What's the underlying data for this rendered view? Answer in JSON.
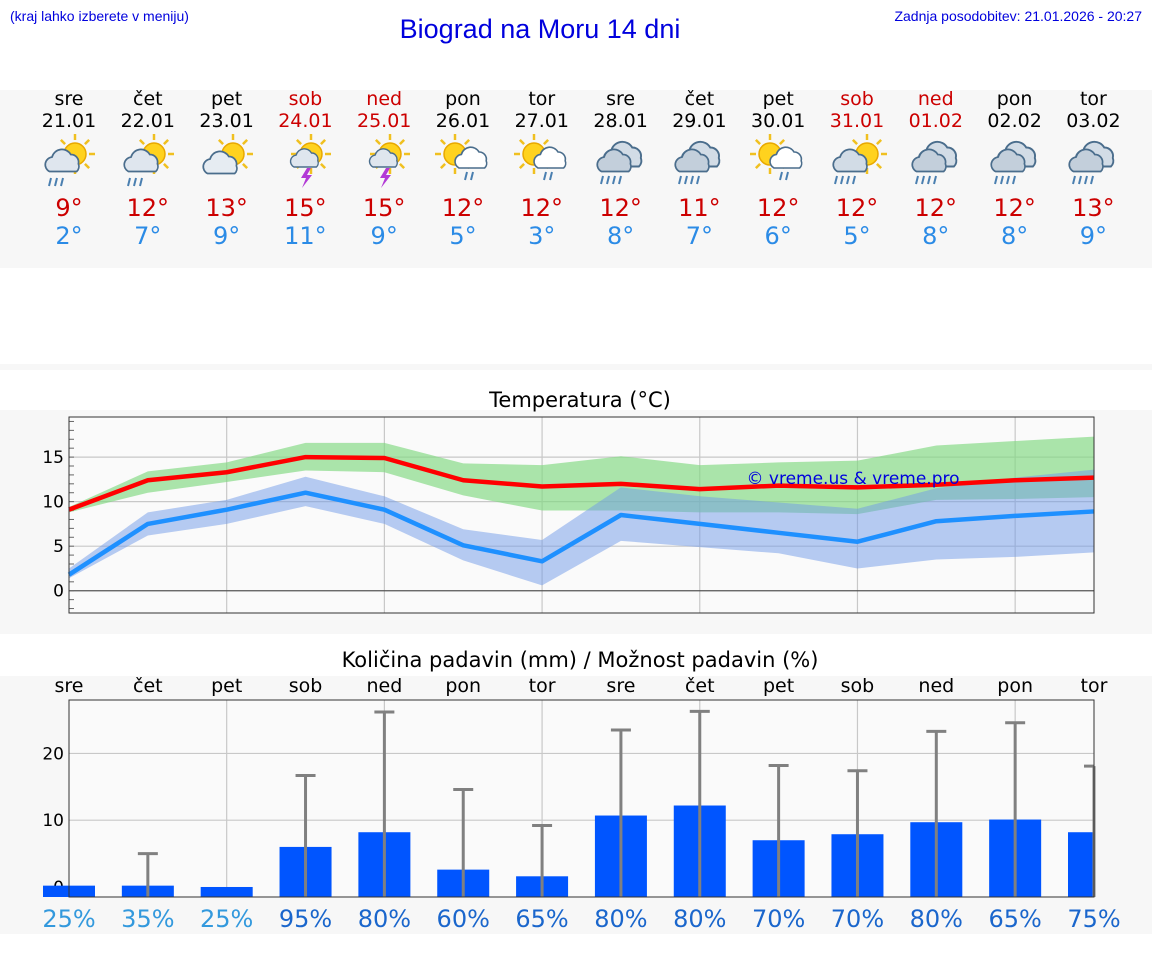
{
  "header": {
    "hint": "(kraj lahko izberete v meniju)",
    "title": "Biograd na Moru 14 dni",
    "updated": "Zadnja posodobitev: 21.01.2026 - 20:27"
  },
  "colors": {
    "weekend": "#cc0000",
    "tmax": "#cc0000",
    "tmin": "#2b8be6",
    "bars": "#0055ff",
    "max_line": "#ff0000",
    "min_line": "#1e90ff"
  },
  "days": [
    {
      "name": "sre",
      "date": "21.01",
      "weekend": false,
      "icon": "sun-cloud-rain-icon",
      "tmax": "9°",
      "tmin": "2°"
    },
    {
      "name": "čet",
      "date": "22.01",
      "weekend": false,
      "icon": "sun-cloud-rain-icon",
      "tmax": "12°",
      "tmin": "7°"
    },
    {
      "name": "pet",
      "date": "23.01",
      "weekend": false,
      "icon": "sun-cloud-icon",
      "tmax": "13°",
      "tmin": "9°"
    },
    {
      "name": "sob",
      "date": "24.01",
      "weekend": true,
      "icon": "sun-thunderstorm-icon",
      "tmax": "15°",
      "tmin": "11°"
    },
    {
      "name": "ned",
      "date": "25.01",
      "weekend": true,
      "icon": "sun-thunderstorm-icon",
      "tmax": "15°",
      "tmin": "9°"
    },
    {
      "name": "pon",
      "date": "26.01",
      "weekend": false,
      "icon": "sun-cloud-light-rain-icon",
      "tmax": "12°",
      "tmin": "5°"
    },
    {
      "name": "tor",
      "date": "27.01",
      "weekend": false,
      "icon": "sun-cloud-light-rain-icon",
      "tmax": "12°",
      "tmin": "3°"
    },
    {
      "name": "sre",
      "date": "28.01",
      "weekend": false,
      "icon": "cloud-heavy-rain-icon",
      "tmax": "12°",
      "tmin": "8°"
    },
    {
      "name": "čet",
      "date": "29.01",
      "weekend": false,
      "icon": "cloud-heavy-rain-icon",
      "tmax": "11°",
      "tmin": "7°"
    },
    {
      "name": "pet",
      "date": "30.01",
      "weekend": false,
      "icon": "sun-cloud-light-rain-icon",
      "tmax": "12°",
      "tmin": "6°"
    },
    {
      "name": "sob",
      "date": "31.01",
      "weekend": true,
      "icon": "sun-cloud-heavy-rain-icon",
      "tmax": "12°",
      "tmin": "5°"
    },
    {
      "name": "ned",
      "date": "01.02",
      "weekend": true,
      "icon": "cloud-heavy-rain-icon",
      "tmax": "12°",
      "tmin": "8°"
    },
    {
      "name": "pon",
      "date": "02.02",
      "weekend": false,
      "icon": "cloud-heavy-rain-icon",
      "tmax": "12°",
      "tmin": "8°"
    },
    {
      "name": "tor",
      "date": "03.02",
      "weekend": false,
      "icon": "cloud-heavy-rain-icon",
      "tmax": "13°",
      "tmin": "9°"
    }
  ],
  "chart_data": [
    {
      "type": "line",
      "title": "Temperatura (°C)",
      "watermark": "© vreme.us & vreme.pro",
      "ylim": [
        -2.5,
        19.5
      ],
      "yticks": [
        0,
        5,
        10,
        15
      ],
      "x": [
        0,
        1,
        2,
        3,
        4,
        5,
        6,
        7,
        8,
        9,
        10,
        11,
        12,
        13
      ],
      "series": [
        {
          "name": "max",
          "values": [
            9.1,
            12.4,
            13.3,
            15.0,
            14.9,
            12.4,
            11.7,
            12.0,
            11.4,
            11.8,
            11.6,
            11.9,
            12.4,
            12.7
          ],
          "band_low": [
            8.8,
            11.0,
            12.2,
            13.5,
            13.3,
            10.7,
            9.0,
            9.0,
            8.8,
            8.8,
            8.6,
            10.2,
            10.3,
            10.5
          ],
          "band_high": [
            9.4,
            13.4,
            14.4,
            16.6,
            16.6,
            14.3,
            14.1,
            15.1,
            14.1,
            14.4,
            14.6,
            16.3,
            16.8,
            17.3
          ]
        },
        {
          "name": "min",
          "values": [
            1.8,
            7.5,
            9.1,
            11.0,
            9.1,
            5.1,
            3.3,
            8.5,
            7.5,
            6.5,
            5.5,
            7.8,
            8.4,
            8.9
          ],
          "band_low": [
            1.4,
            6.2,
            7.5,
            9.5,
            7.5,
            3.4,
            0.6,
            5.6,
            4.9,
            4.2,
            2.5,
            3.5,
            3.8,
            4.3
          ],
          "band_high": [
            2.5,
            8.8,
            10.2,
            12.8,
            10.6,
            6.9,
            5.7,
            11.6,
            10.6,
            9.9,
            9.2,
            11.5,
            12.7,
            13.6
          ]
        }
      ]
    },
    {
      "type": "bar",
      "title": "Količina padavin (mm) / Možnost padavin (%)",
      "categories": [
        "sre",
        "čet",
        "pet",
        "sob",
        "ned",
        "pon",
        "tor",
        "sre",
        "čet",
        "pet",
        "sob",
        "ned",
        "pon",
        "tor"
      ],
      "ylim": [
        -1.5,
        28
      ],
      "yticks": [
        0,
        10,
        20
      ],
      "values": [
        0.2,
        0.2,
        0,
        6,
        8.2,
        2.6,
        1.6,
        10.7,
        12.2,
        7,
        7.9,
        9.7,
        10.1,
        8.2
      ],
      "error_high": [
        0,
        5,
        0,
        16.7,
        26.2,
        14.6,
        9.2,
        23.5,
        26.3,
        18.2,
        17.4,
        23.3,
        24.6,
        18.1
      ],
      "probability": [
        "25%",
        "35%",
        "25%",
        "95%",
        "80%",
        "60%",
        "65%",
        "80%",
        "80%",
        "70%",
        "70%",
        "80%",
        "65%",
        "75%"
      ]
    }
  ]
}
